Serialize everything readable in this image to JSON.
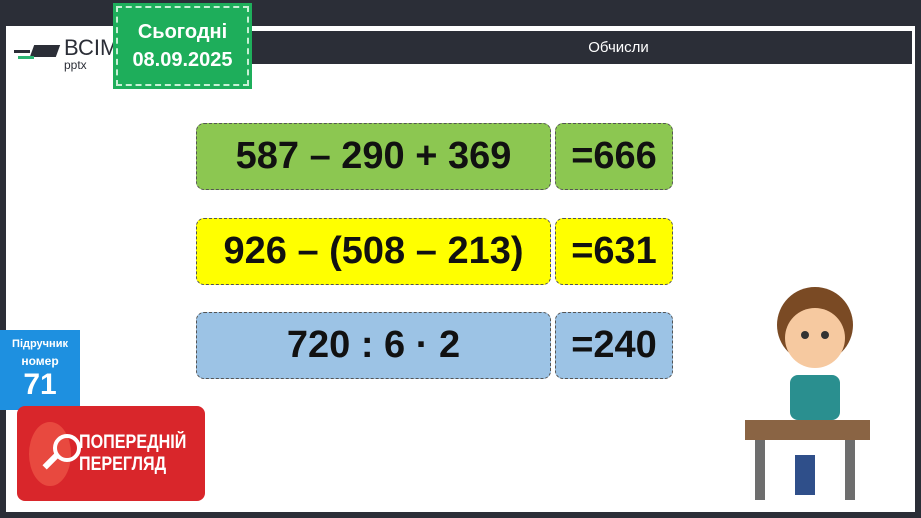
{
  "header": {
    "title": "Обчисли",
    "date_label": "Сьогодні",
    "date": "08.09.2025",
    "logo": "ВСІМ pptx"
  },
  "rows": [
    {
      "expression": "587 – 290 + 369",
      "answer": "=666",
      "color": "#8cc751"
    },
    {
      "expression": "926 – (508 – 213)",
      "answer": "=631",
      "color": "#ffff00"
    },
    {
      "expression": "720 : 6 · 2",
      "answer": "=240",
      "color": "#9cc3e5"
    }
  ],
  "textbook": {
    "label1": "Підручник",
    "label2": "номер",
    "number": "71"
  },
  "preview": {
    "line1": "ПОПЕРЕДНІЙ",
    "line2": "ПЕРЕГЛЯД"
  }
}
